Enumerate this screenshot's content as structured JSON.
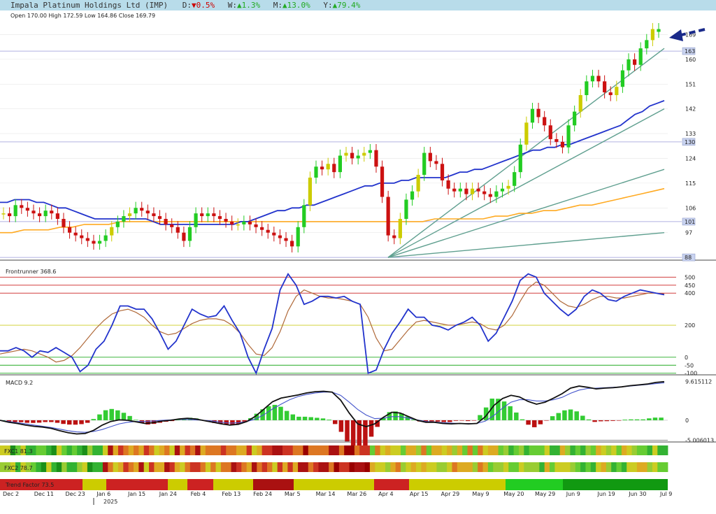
{
  "header": {
    "company": "Impala Platinum Holdings Ltd (IMP)",
    "d_label": "D:",
    "d_arrow": "▼",
    "d_value": "0.5%",
    "w_label": "W:",
    "w_arrow": "▲",
    "w_value": "1.3%",
    "m_label": "M:",
    "m_arrow": "▲",
    "m_value": "13.0%",
    "y_label": "Y:",
    "y_arrow": "▲",
    "y_value": "79.4%"
  },
  "ohlc_text": "Open 170.00  High 172.59  Low 164.86  Close 169.79",
  "colors": {
    "up_green": "#22cc22",
    "up_yellow": "#cccc00",
    "down_red": "#cc1111",
    "ma_blue": "#2233cc",
    "ma_orange": "#ffaa22",
    "trend_teal": "#5f9f8f",
    "hline_purple": "#b0b0e0",
    "arrow": "#1a2a8a"
  },
  "chart_data": [
    {
      "type": "candlestick",
      "title": "Price",
      "y_ticks": [
        88,
        97,
        106,
        115,
        124,
        133,
        142,
        151,
        160,
        169
      ],
      "price_levels": [
        88,
        101,
        130,
        163
      ],
      "ylim": [
        87,
        177
      ],
      "last_candle": {
        "open": 170.0,
        "high": 172.59,
        "low": 164.86,
        "close": 169.79
      },
      "closes": [
        104,
        103,
        107,
        106,
        105,
        104,
        103,
        105,
        104,
        102,
        99,
        97,
        96,
        95,
        94,
        93,
        94,
        96,
        99,
        101,
        103,
        104,
        106,
        105,
        104,
        103,
        102,
        100,
        99,
        97,
        94,
        99,
        104,
        103,
        104,
        103,
        102,
        101,
        100,
        100,
        101,
        100,
        99,
        98,
        97,
        96,
        95,
        94,
        92,
        99,
        107,
        117,
        121,
        120,
        122,
        119,
        125,
        126,
        124,
        125,
        126,
        127,
        121,
        110,
        96,
        95,
        102,
        109,
        112,
        118,
        126,
        123,
        122,
        116,
        113,
        112,
        113,
        111,
        113,
        112,
        111,
        110,
        112,
        113,
        114,
        119,
        129,
        137,
        142,
        139,
        136,
        131,
        130,
        128,
        136,
        141,
        147,
        152,
        154,
        152,
        148,
        147,
        150,
        156,
        160,
        158,
        164,
        167,
        171,
        170
      ],
      "ma_short": [
        108,
        108,
        109,
        109,
        109,
        108,
        108,
        107,
        106,
        106,
        105,
        104,
        103,
        102,
        102,
        102,
        102,
        102,
        102,
        102,
        102,
        101,
        100,
        100,
        100,
        100,
        100,
        100,
        100,
        100,
        100,
        100,
        100,
        101,
        101,
        102,
        103,
        104,
        105,
        105,
        106,
        106,
        107,
        107,
        108,
        109,
        110,
        111,
        112,
        113,
        114,
        114,
        115,
        115,
        115,
        116,
        116,
        117,
        117,
        117,
        117,
        117,
        118,
        119,
        119,
        120,
        120,
        121,
        122,
        123,
        124,
        125,
        126,
        127,
        127,
        128,
        128,
        129,
        129,
        130,
        131,
        132,
        133,
        134,
        135,
        136,
        138,
        140,
        141,
        143,
        144,
        145
      ],
      "ma_long": [
        97,
        97,
        98,
        98,
        98,
        99,
        99,
        100,
        100,
        100,
        101,
        101,
        101,
        101,
        101,
        101,
        101,
        101,
        101,
        101,
        101,
        101,
        101,
        101,
        101,
        101,
        101,
        101,
        101,
        101,
        101,
        101,
        101,
        101,
        101,
        101,
        102,
        102,
        102,
        102,
        102,
        103,
        103,
        104,
        104,
        105,
        105,
        106,
        107,
        107,
        108,
        109,
        110,
        111,
        112,
        113
      ],
      "trend_lines": [
        [
          [
            88,
            0
          ],
          [
            164,
            1
          ]
        ],
        [
          [
            88,
            0
          ],
          [
            142,
            1
          ]
        ],
        [
          [
            88,
            0
          ],
          [
            120,
            1
          ]
        ],
        [
          [
            88,
            0
          ],
          [
            97,
            1
          ]
        ]
      ]
    },
    {
      "type": "line",
      "title": "Frontrunner 368.6",
      "y_ticks": [
        500,
        450,
        400,
        200,
        0,
        -50,
        -100
      ],
      "ylim": [
        -110,
        580
      ],
      "series": [
        {
          "name": "Frontrunner",
          "values": [
            40,
            40,
            60,
            40,
            0,
            40,
            30,
            60,
            30,
            0,
            -90,
            -50,
            50,
            100,
            200,
            320,
            320,
            300,
            300,
            240,
            150,
            50,
            100,
            200,
            300,
            270,
            250,
            260,
            320,
            230,
            150,
            0,
            -100,
            50,
            180,
            420,
            520,
            450,
            330,
            350,
            380,
            380,
            370,
            380,
            350,
            330,
            -100,
            -80,
            50,
            150,
            220,
            300,
            250,
            250,
            200,
            190,
            170,
            200,
            220,
            250,
            200,
            100,
            150,
            250,
            350,
            480,
            520,
            500,
            400,
            350,
            300,
            260,
            300,
            380,
            420,
            400,
            360,
            350,
            380,
            400,
            420,
            410,
            400,
            390
          ]
        },
        {
          "name": "Signal",
          "values": [
            20,
            30,
            40,
            50,
            40,
            20,
            0,
            -30,
            -20,
            10,
            60,
            120,
            180,
            230,
            270,
            290,
            300,
            280,
            250,
            200,
            160,
            140,
            150,
            180,
            210,
            230,
            240,
            240,
            230,
            200,
            150,
            80,
            20,
            10,
            60,
            160,
            290,
            380,
            420,
            400,
            380,
            370,
            370,
            360,
            350,
            330,
            250,
            120,
            40,
            50,
            110,
            170,
            220,
            230,
            220,
            210,
            200,
            200,
            210,
            220,
            210,
            180,
            170,
            200,
            260,
            350,
            430,
            470,
            450,
            400,
            350,
            320,
            310,
            330,
            360,
            380,
            380,
            370,
            370,
            380,
            390,
            400,
            400,
            395
          ]
        }
      ]
    },
    {
      "type": "line+bar",
      "title": "MACD 9.2",
      "y_ticks": [
        "9.615112",
        "0",
        "-5.006013"
      ],
      "ylim": [
        -5.4,
        10.6
      ],
      "series": [
        {
          "name": "MACD",
          "values": [
            0,
            -0.5,
            -0.8,
            -1.2,
            -1.5,
            -1.7,
            -2.0,
            -2.6,
            -3.1,
            -3.4,
            -3.3,
            -2.5,
            -1.2,
            -0.3,
            0.1,
            0.0,
            -0.4,
            -0.8,
            -0.6,
            -0.2,
            0.0,
            0.3,
            0.5,
            0.3,
            -0.1,
            -0.5,
            -0.9,
            -1.2,
            -1.0,
            -0.3,
            1.0,
            2.8,
            4.6,
            5.5,
            5.9,
            6.3,
            6.8,
            7.1,
            7.2,
            7.0,
            5.0,
            1.8,
            -0.9,
            -1.6,
            -0.9,
            0.7,
            2.0,
            1.8,
            0.9,
            0.0,
            -0.5,
            -0.5,
            -0.8,
            -0.9,
            -0.8,
            -0.9,
            -0.8,
            0.9,
            3.7,
            5.4,
            6.2,
            5.8,
            4.7,
            4.0,
            4.5,
            5.5,
            6.6,
            8.0,
            8.5,
            8.2,
            7.8,
            8.0,
            8.1,
            8.3,
            8.6,
            8.8,
            9.0,
            9.4,
            9.6
          ]
        },
        {
          "name": "Signal",
          "values": [
            0,
            -0.3,
            -0.6,
            -0.9,
            -1.2,
            -1.5,
            -1.8,
            -2.2,
            -2.6,
            -2.9,
            -3.0,
            -2.8,
            -2.3,
            -1.6,
            -0.9,
            -0.5,
            -0.3,
            -0.3,
            -0.2,
            0.0,
            0.1,
            0.2,
            0.2,
            0.1,
            0.0,
            -0.2,
            -0.5,
            -0.7,
            -0.6,
            -0.3,
            0.3,
            1.4,
            2.8,
            4.0,
            5.1,
            5.9,
            6.4,
            6.8,
            7.0,
            7.0,
            6.2,
            4.5,
            2.7,
            1.3,
            0.4,
            0.5,
            0.9,
            0.9,
            0.5,
            0.1,
            -0.3,
            -0.4,
            -0.6,
            -0.7,
            -0.8,
            -0.8,
            -0.8,
            -0.2,
            1.2,
            3.0,
            4.5,
            5.1,
            5.1,
            4.8,
            4.8,
            5.1,
            5.7,
            6.7,
            7.5,
            7.9,
            8.0,
            8.1,
            8.2,
            8.3,
            8.5,
            8.7,
            8.9,
            9.1,
            9.3
          ]
        }
      ]
    }
  ],
  "fxc1": {
    "label": "FXC1 81.3"
  },
  "fxc2": {
    "label": "FXC2 78.7"
  },
  "trend_factor": {
    "label": "Trend Factor 73.5"
  },
  "x_axis": {
    "labels": [
      "Dec 2",
      "Dec 11",
      "Dec 23",
      "Jan 6",
      "Jan 15",
      "Jan 24",
      "Feb 4",
      "Feb 13",
      "Feb 24",
      "Mar 5",
      "Mar 14",
      "Mar 26",
      "Apr 4",
      "Apr 15",
      "Apr 29",
      "May 9",
      "May 20",
      "May 29",
      "Jun 9",
      "Jun 19",
      "Jun 30",
      "Jul 9"
    ],
    "year_label": "2025"
  }
}
